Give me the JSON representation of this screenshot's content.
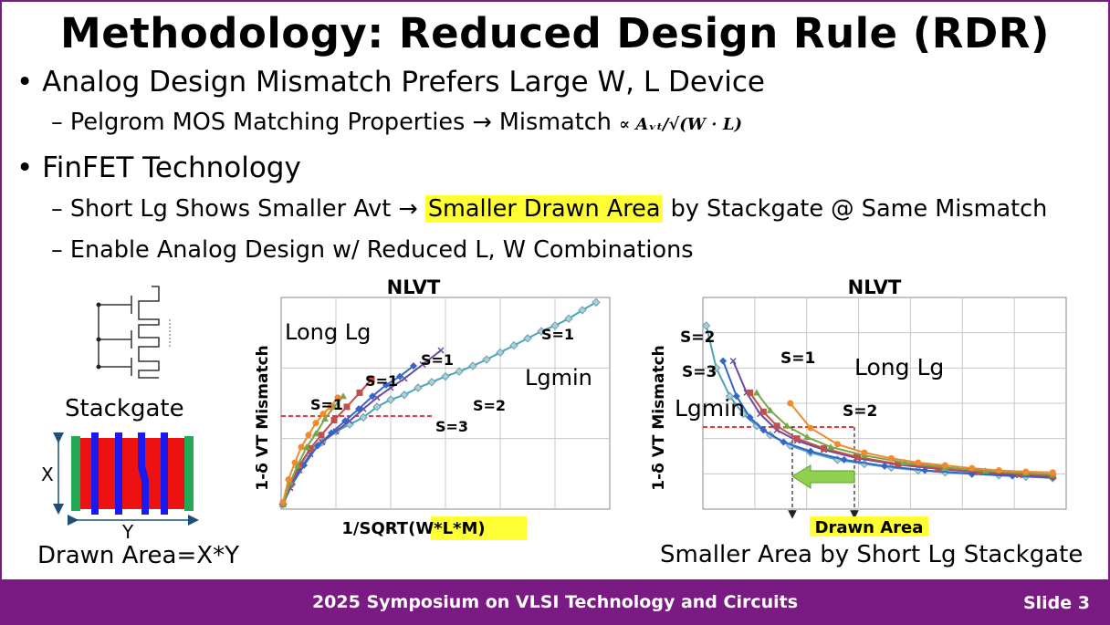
{
  "slide": {
    "title": "Methodology: Reduced Design Rule (RDR)",
    "bullet1": "Analog Design Mismatch Prefers Large W, L Device",
    "bullet1_sub": "Pelgrom MOS Matching Properties → Mismatch",
    "formula": "∝ Aᵥₜ/√(W · L)",
    "bullet2": "FinFET Technology",
    "bullet2_sub1_pre": "Short Lg Shows Smaller Avt →",
    "bullet2_sub1_highlight": "Smaller Drawn Area",
    "bullet2_sub1_post": "by Stackgate @ Same Mismatch",
    "bullet2_sub2": "Enable Analog Design w/ Reduced L, W Combinations"
  },
  "diagram": {
    "stackgate_label": "Stackgate",
    "x_label": "X",
    "y_label": "Y",
    "area_label": "Drawn Area=X*Y"
  },
  "footer": {
    "conference": "2025 Symposium on VLSI Technology and Circuits",
    "slide_number": "Slide 3"
  },
  "colors": {
    "accent": "#7a1b83",
    "highlight": "#ffff33",
    "series_lgmin": "#4aa3b6",
    "series_s1_purple": "#6a4c9c",
    "series_s1_blue": "#3366cc",
    "series_s1_red": "#c0504d",
    "series_s1_green": "#77a64a",
    "series_long_orange": "#ef8b2c"
  },
  "chart_data": [
    {
      "type": "line",
      "title": "NLVT",
      "xlabel": "1/SQRT(W*L*M)",
      "xlabel_prefix": "1/SQRT(",
      "xlabel_highlight": "W*L*M)",
      "ylabel": "1-δ VT Mismatch",
      "grid": true,
      "annotations": [
        "Long Lg",
        "Lgmin",
        "S=1",
        "S=1",
        "S=1",
        "S=1",
        "S=2",
        "S=3"
      ],
      "reference_line": {
        "style": "dashed",
        "color": "#d00000"
      },
      "series": [
        {
          "values_x": [
            0.02,
            0.1,
            0.2,
            0.32,
            0.45,
            0.6,
            0.75,
            0.9,
            1.05,
            1.2,
            1.35,
            1.5,
            1.65,
            1.8,
            1.95,
            2.1,
            2.25,
            2.4,
            2.55,
            2.7,
            2.85,
            3.0,
            3.15,
            3.3,
            3.45
          ],
          "values_y": [
            0.07,
            0.35,
            0.6,
            0.85,
            0.95,
            1.1,
            1.2,
            1.3,
            1.45,
            1.55,
            1.62,
            1.72,
            1.8,
            1.88,
            1.95,
            2.03,
            2.12,
            2.22,
            2.32,
            2.42,
            2.52,
            2.6,
            2.7,
            2.82,
            2.93
          ]
        },
        {
          "values_x": [
            0.02,
            0.1,
            0.2,
            0.32,
            0.45,
            0.6,
            0.75,
            0.9,
            1.05,
            1.2,
            1.35,
            1.55,
            1.75
          ],
          "values_y": [
            0.07,
            0.3,
            0.55,
            0.78,
            0.95,
            1.1,
            1.25,
            1.42,
            1.58,
            1.72,
            1.85,
            2.05,
            2.25
          ]
        },
        {
          "values_x": [
            0.02,
            0.12,
            0.25,
            0.4,
            0.55,
            0.7,
            0.85,
            1.0,
            1.15,
            1.3,
            1.45
          ],
          "values_y": [
            0.07,
            0.35,
            0.62,
            0.9,
            1.08,
            1.25,
            1.42,
            1.6,
            1.76,
            1.88,
            2.03
          ]
        },
        {
          "values_x": [
            0.02,
            0.1,
            0.2,
            0.32,
            0.44,
            0.58,
            0.72,
            0.86,
            0.99
          ],
          "values_y": [
            0.07,
            0.35,
            0.62,
            0.86,
            1.05,
            1.26,
            1.45,
            1.65,
            1.84
          ]
        },
        {
          "values_x": [
            0.02,
            0.1,
            0.18,
            0.28,
            0.38,
            0.48,
            0.58,
            0.68
          ],
          "values_y": [
            0.07,
            0.38,
            0.62,
            0.88,
            1.07,
            1.28,
            1.45,
            1.6
          ]
        },
        {
          "values_x": [
            0.02,
            0.08,
            0.15,
            0.22,
            0.3,
            0.38,
            0.46,
            0.54,
            0.62
          ],
          "values_y": [
            0.1,
            0.42,
            0.66,
            0.88,
            1.05,
            1.22,
            1.35,
            1.45,
            1.58
          ]
        }
      ]
    },
    {
      "type": "line",
      "title": "NLVT",
      "xlabel": "Drawn Area",
      "ylabel": "1-δ VT Mismatch",
      "grid": true,
      "annotations": [
        "S=2",
        "S=3",
        "S=1",
        "Long Lg",
        "Lgmin",
        "S=2"
      ],
      "caption": "Smaller Area by Short Lg Stackgate",
      "reference_line": {
        "style": "dashed",
        "color": "#d00000"
      },
      "series": [
        {
          "values_x": [
            0.05,
            0.2,
            0.4,
            0.6,
            0.8,
            1.0,
            1.3,
            1.6,
            2.0,
            2.4,
            2.8,
            3.2,
            3.6,
            4.0,
            4.4,
            4.8,
            5.2
          ],
          "values_y": [
            2.6,
            2.0,
            1.6,
            1.35,
            1.18,
            1.05,
            0.9,
            0.8,
            0.7,
            0.64,
            0.59,
            0.55,
            0.52,
            0.5,
            0.48,
            0.46,
            0.44
          ]
        },
        {
          "values_x": [
            0.3,
            0.5,
            0.7,
            0.9,
            1.2,
            1.6,
            2.1,
            2.7,
            3.3,
            4.0,
            4.6,
            5.2
          ],
          "values_y": [
            2.1,
            1.6,
            1.3,
            1.12,
            0.95,
            0.82,
            0.7,
            0.61,
            0.55,
            0.5,
            0.47,
            0.45
          ]
        },
        {
          "values_x": [
            0.45,
            0.65,
            0.85,
            1.1,
            1.4,
            1.8,
            2.3,
            2.9,
            3.5,
            4.1,
            4.7,
            5.2
          ],
          "values_y": [
            2.1,
            1.65,
            1.35,
            1.12,
            0.97,
            0.84,
            0.72,
            0.63,
            0.57,
            0.52,
            0.48,
            0.46
          ]
        },
        {
          "values_x": [
            0.7,
            0.9,
            1.1,
            1.4,
            1.8,
            2.3,
            2.9,
            3.5,
            4.1,
            4.7,
            5.2
          ],
          "values_y": [
            1.65,
            1.38,
            1.18,
            1.0,
            0.86,
            0.74,
            0.64,
            0.58,
            0.53,
            0.5,
            0.47
          ]
        },
        {
          "values_x": [
            0.8,
            1.0,
            1.25,
            1.55,
            1.9,
            2.4,
            3.0,
            3.6,
            4.2,
            4.8,
            5.2
          ],
          "values_y": [
            1.65,
            1.4,
            1.18,
            1.02,
            0.88,
            0.76,
            0.66,
            0.59,
            0.54,
            0.51,
            0.49
          ]
        },
        {
          "values_x": [
            1.3,
            1.6,
            2.0,
            2.4,
            2.8,
            3.2,
            3.6,
            4.0,
            4.4,
            4.8,
            5.2
          ],
          "values_y": [
            1.5,
            1.15,
            0.92,
            0.8,
            0.72,
            0.66,
            0.62,
            0.58,
            0.55,
            0.53,
            0.52
          ]
        }
      ]
    }
  ]
}
